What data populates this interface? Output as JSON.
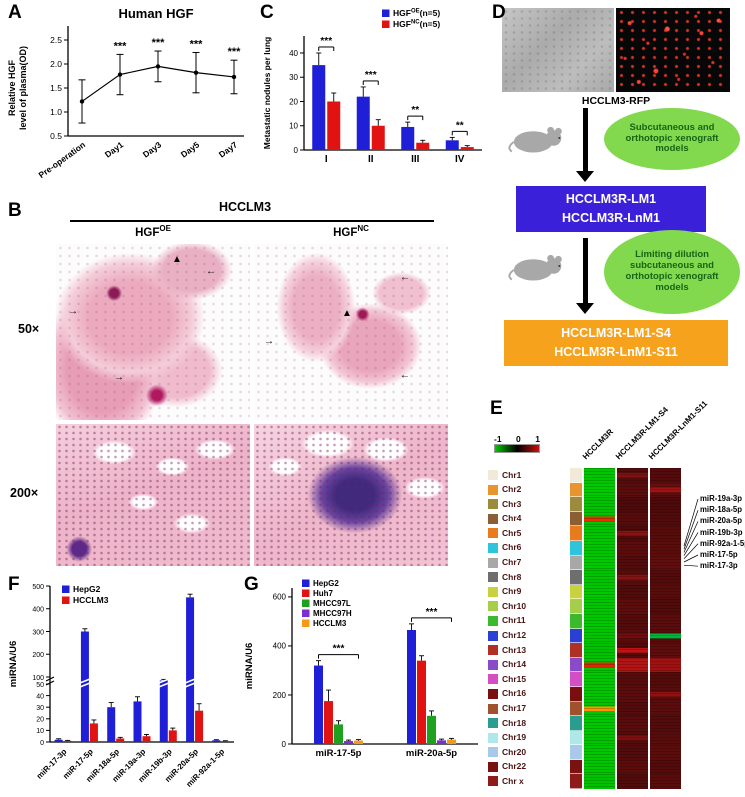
{
  "labels": {
    "A": "A",
    "B": "B",
    "C": "C",
    "D": "D",
    "E": "E",
    "F": "F",
    "G": "G"
  },
  "glyphs": {
    "arrow_right": "→",
    "arrow_left": "←",
    "triangle": "▲"
  },
  "panelB": {
    "title": "HCCLM3",
    "col1": {
      "base": "HGF",
      "sup": "OE"
    },
    "col2": {
      "base": "HGF",
      "sup": "NC"
    },
    "row1": "50×",
    "row2": "200×"
  },
  "panelD": {
    "cell_label": "HCCLM3-RFP",
    "ellipse1": "Subcutaneous and orthotopic xenograft models",
    "box1_lines": [
      "HCCLM3R-LM1",
      "HCCLM3R-LnM1"
    ],
    "ellipse2": "Limiting dilution subcutaneous and orthotopic xenograft models",
    "box2_lines": [
      "HCCLM3R-LM1-S4",
      "HCCLM3R-LnM1-S11"
    ],
    "box1_color": "#3a20d8",
    "box2_color": "#f6a21c",
    "ellipse_color": "#82d94e"
  },
  "panelE": {
    "legend_ticks": [
      "-1",
      "0",
      "1"
    ],
    "legend_gradient": [
      "#00c800",
      "#000000",
      "#cc1010"
    ],
    "columns": [
      "HCCLM3R",
      "HCCLM3R-LM1-S4",
      "HCCLM3R-LnM1-S11"
    ],
    "mir_labels": [
      "miR-19a-3p",
      "miR-18a-5p",
      "miR-20a-5p",
      "miR-19b-3p",
      "miR-92a-1-5p",
      "miR-17-5p",
      "miR-17-3p"
    ],
    "rows": [
      {
        "chr": "Chr1",
        "swatch": "#f2ead8",
        "c1": [
          "#00c600"
        ],
        "c2": [
          "#530b0b",
          "#7e1111",
          "#530b0b"
        ],
        "c3": [
          "#550b0b"
        ]
      },
      {
        "chr": "Chr2",
        "swatch": "#e8952f",
        "c1": [
          "#00ca00"
        ],
        "c2": [
          "#5b0c0c"
        ],
        "c3": [
          "#660e0e",
          "#9e1313",
          "#5b0c0c"
        ]
      },
      {
        "chr": "Chr3",
        "swatch": "#9c8b3c",
        "c1": [
          "#00c200"
        ],
        "c2": [
          "#4e0a0a"
        ],
        "c3": [
          "#4e0a0a"
        ]
      },
      {
        "chr": "Chr4",
        "swatch": "#8b5e34",
        "c1": [
          "#00c600",
          "#e53000",
          "#00c600"
        ],
        "c2": [
          "#570b0b"
        ],
        "c3": [
          "#520b0b"
        ]
      },
      {
        "chr": "Chr5",
        "swatch": "#e87b1e",
        "c1": [
          "#00c600"
        ],
        "c2": [
          "#500a0a",
          "#8c1212",
          "#500a0a"
        ],
        "c3": [
          "#570b0b"
        ]
      },
      {
        "chr": "Chr6",
        "swatch": "#2ec4d9",
        "c1": [
          "#00c600"
        ],
        "c2": [
          "#5d0c0c"
        ],
        "c3": [
          "#5d0c0c"
        ]
      },
      {
        "chr": "Chr7",
        "swatch": "#a8a8a8",
        "c1": [
          "#00c900"
        ],
        "c2": [
          "#540b0b"
        ],
        "c3": [
          "#600d0d"
        ]
      },
      {
        "chr": "Chr8",
        "swatch": "#6e6e6e",
        "c1": [
          "#00c400"
        ],
        "c2": [
          "#590c0c",
          "#881111",
          "#590c0c"
        ],
        "c3": [
          "#540b0b"
        ]
      },
      {
        "chr": "Chr9",
        "swatch": "#c9d13f",
        "c1": [
          "#00c700"
        ],
        "c2": [
          "#510b0b"
        ],
        "c3": [
          "#590c0c"
        ]
      },
      {
        "chr": "Chr10",
        "swatch": "#a5cf4a",
        "c1": [
          "#00c500"
        ],
        "c2": [
          "#5e0c0c"
        ],
        "c3": [
          "#510b0b"
        ]
      },
      {
        "chr": "Chr11",
        "swatch": "#3cba2e",
        "c1": [
          "#00c800"
        ],
        "c2": [
          "#560b0b"
        ],
        "c3": [
          "#5b0c0c"
        ]
      },
      {
        "chr": "Chr12",
        "swatch": "#2a3fd4",
        "c1": [
          "#00c600"
        ],
        "c2": [
          "#580c0c",
          "#6e0e0e",
          "#580c0c"
        ],
        "c3": [
          "#570b0b",
          "#00b43c",
          "#570b0b"
        ]
      },
      {
        "chr": "Chr13",
        "swatch": "#b03123",
        "c1": [
          "#00c300"
        ],
        "c2": [
          "#520b0b",
          "#c01414",
          "#520b0b"
        ],
        "c3": [
          "#5e0c0c"
        ]
      },
      {
        "chr": "Chr14",
        "swatch": "#8a4bc9",
        "c1": [
          "#00c600",
          "#e02800",
          "#00c600"
        ],
        "c2": [
          "#b31414"
        ],
        "c3": [
          "#a01212"
        ]
      },
      {
        "chr": "Chr15",
        "swatch": "#d44fc4",
        "c1": [
          "#00c700"
        ],
        "c2": [
          "#570b0b"
        ],
        "c3": [
          "#560b0b"
        ]
      },
      {
        "chr": "Chr16",
        "swatch": "#7a0f0f",
        "c1": [
          "#00c500"
        ],
        "c2": [
          "#5c0c0c"
        ],
        "c3": [
          "#590c0c",
          "#8e1212",
          "#590c0c"
        ]
      },
      {
        "chr": "Chr17",
        "swatch": "#a0522d",
        "c1": [
          "#00c600",
          "#ff9100",
          "#00c600"
        ],
        "c2": [
          "#550b0b"
        ],
        "c3": [
          "#5c0c0c"
        ]
      },
      {
        "chr": "Chr18",
        "swatch": "#2a9d8f",
        "c1": [
          "#00c800"
        ],
        "c2": [
          "#5a0c0c"
        ],
        "c3": [
          "#530b0b"
        ]
      },
      {
        "chr": "Chr19",
        "swatch": "#aee8e8",
        "c1": [
          "#00c400"
        ],
        "c2": [
          "#560b0b",
          "#7c1010",
          "#560b0b"
        ],
        "c3": [
          "#580c0c"
        ]
      },
      {
        "chr": "Chr20",
        "swatch": "#a9c9ea",
        "c1": [
          "#00c700"
        ],
        "c2": [
          "#530b0b"
        ],
        "c3": [
          "#5d0c0c"
        ]
      },
      {
        "chr": "Chr22",
        "swatch": "#7a1212",
        "c1": [
          "#00c600"
        ],
        "c2": [
          "#5d0c0c"
        ],
        "c3": [
          "#550b0b"
        ]
      },
      {
        "chr": "Chr x",
        "swatch": "#8f1a1a",
        "c1": [
          "#00c300"
        ],
        "c2": [
          "#520b0b"
        ],
        "c3": [
          "#5a0c0c"
        ]
      }
    ]
  },
  "chart_data": [
    {
      "id": "A",
      "type": "line",
      "title": "Human HGF",
      "ylabel_lines": [
        "Relative HGF",
        "level of plasma(OD)"
      ],
      "categories": [
        "Pre-operation",
        "Day1",
        "Day3",
        "Day5",
        "Day7"
      ],
      "values": [
        1.22,
        1.78,
        1.95,
        1.82,
        1.73
      ],
      "errors": [
        0.45,
        0.42,
        0.32,
        0.42,
        0.35
      ],
      "significance": [
        "",
        "***",
        "***",
        "***",
        "***"
      ],
      "ylim": [
        0.5,
        2.5
      ],
      "yticks": [
        0.5,
        1.0,
        1.5,
        2.0,
        2.5
      ],
      "line_color": "#000000"
    },
    {
      "id": "C",
      "type": "bar",
      "ylabel": "Metastatic nodules per lung",
      "categories": [
        "I",
        "II",
        "III",
        "IV"
      ],
      "series": [
        {
          "name_base": "HGF",
          "name_sup": "OE",
          "name_rest": "(n=5)",
          "color": "#1f1fd8",
          "values": [
            35,
            22,
            9.5,
            4
          ],
          "errors": [
            5,
            4,
            2,
            1.2
          ]
        },
        {
          "name_base": "HGF",
          "name_sup": "NC",
          "name_rest": "(n=5)",
          "color": "#e01212",
          "values": [
            20,
            10,
            3,
            1.2
          ],
          "errors": [
            3.5,
            2.5,
            1,
            0.6
          ]
        }
      ],
      "significance": [
        "***",
        "***",
        "**",
        "**"
      ],
      "ylim": [
        0,
        47
      ],
      "yticks": [
        0,
        10,
        20,
        30,
        40
      ]
    },
    {
      "id": "F",
      "type": "bar",
      "broken_axis": true,
      "ylabel": "miRNA/U6",
      "categories": [
        "miR-17-3p",
        "miR-17-5p",
        "miR-18a-5p",
        "miR-19a-3p",
        "miR-19b-3p",
        "miR-20a-5p",
        "miR-92a-1-5p"
      ],
      "series": [
        {
          "name": "HepG2",
          "color": "#1f1fd8",
          "values": [
            2,
            300,
            30,
            35,
            75,
            450,
            1.5
          ],
          "errors": [
            0.8,
            12,
            4,
            4,
            8,
            14,
            0.5
          ]
        },
        {
          "name": "HCCLM3",
          "color": "#e01212",
          "values": [
            1,
            16,
            3,
            5,
            10,
            27,
            0.8
          ],
          "errors": [
            0.4,
            3,
            1,
            1.5,
            2,
            6,
            0.3
          ]
        }
      ],
      "yticks_lower": [
        0,
        10,
        20,
        30,
        40,
        50
      ],
      "yticks_upper": [
        100,
        200,
        300,
        400,
        500
      ]
    },
    {
      "id": "G",
      "type": "bar",
      "ylabel": "miRNA/U6",
      "categories": [
        "miR-17-5p",
        "miR-20a-5p"
      ],
      "series": [
        {
          "name": "HepG2",
          "color": "#1f1fd8",
          "values": [
            320,
            465
          ],
          "errors": [
            20,
            25
          ]
        },
        {
          "name": "Huh7",
          "color": "#e01212",
          "values": [
            175,
            340
          ],
          "errors": [
            45,
            20
          ]
        },
        {
          "name": "MHCC97L",
          "color": "#1fa01f",
          "values": [
            80,
            115
          ],
          "errors": [
            15,
            20
          ]
        },
        {
          "name": "MHCC97H",
          "color": "#7a2fd0",
          "values": [
            12,
            15
          ],
          "errors": [
            4,
            5
          ]
        },
        {
          "name": "HCCLM3",
          "color": "#f59a18",
          "values": [
            14,
            18
          ],
          "errors": [
            4,
            5
          ]
        }
      ],
      "significance": [
        "***",
        "***"
      ],
      "ylim": [
        0,
        600
      ],
      "yticks": [
        0,
        200,
        400,
        600
      ]
    }
  ]
}
